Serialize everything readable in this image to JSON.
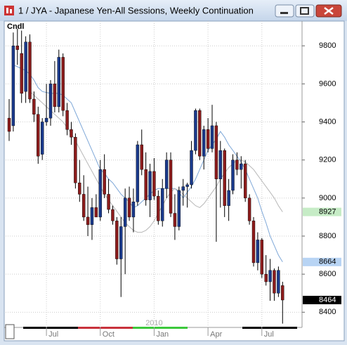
{
  "chart_data": {
    "type": "candlestick",
    "title": "1 / JYA - Japanese Yen-All Sessions, Weekly Continuation",
    "indicator_label": "Cndl",
    "year_label": "2010",
    "open": [
      9420,
      9380,
      9800,
      9760,
      9560,
      9820,
      9520,
      9440,
      9230,
      9400,
      9420,
      9600,
      9480,
      9740,
      9460,
      9360,
      9320,
      9080,
      9020,
      8900,
      8860,
      8950,
      8900,
      9150,
      9020,
      8940,
      8880,
      8680,
      8850,
      9000,
      8900,
      8980,
      9280,
      9150,
      8990,
      9140,
      9010,
      8880,
      9050,
      9200,
      8920,
      8850,
      9040,
      9060,
      9070,
      9250,
      9460,
      9220,
      9360,
      9260,
      9380,
      9100,
      9250,
      8960,
      9040,
      9200,
      9150,
      9180,
      9000,
      8880,
      8660,
      8780,
      8600,
      8560,
      8620,
      8500,
      8540
    ],
    "high": [
      9520,
      9870,
      9890,
      9880,
      9850,
      9860,
      9560,
      9480,
      9420,
      9600,
      9620,
      9720,
      9780,
      9760,
      9500,
      9400,
      9340,
      9200,
      9120,
      9060,
      9000,
      9020,
      9200,
      9230,
      9100,
      8960,
      8900,
      8900,
      9050,
      9060,
      9050,
      9300,
      9360,
      9240,
      9180,
      9210,
      9040,
      9100,
      9240,
      9240,
      9020,
      9060,
      9100,
      9080,
      9300,
      9470,
      9470,
      9380,
      9420,
      9490,
      9400,
      9300,
      9260,
      9100,
      9230,
      9240,
      9220,
      9200,
      9020,
      8900,
      8820,
      8790,
      8700,
      8680,
      8630,
      8640,
      8560
    ],
    "low": [
      9300,
      9350,
      9700,
      9500,
      9500,
      9500,
      9400,
      9180,
      9200,
      9380,
      9380,
      9450,
      9450,
      9430,
      9330,
      9280,
      9050,
      8980,
      8880,
      8800,
      8780,
      8900,
      8880,
      9000,
      8920,
      8860,
      8650,
      8480,
      8600,
      8880,
      8820,
      8960,
      9120,
      8960,
      8900,
      8990,
      8860,
      8850,
      9000,
      8900,
      8780,
      8830,
      8960,
      8950,
      9050,
      9230,
      9200,
      9150,
      9240,
      9240,
      8770,
      8950,
      8900,
      8880,
      9020,
      9120,
      9050,
      8980,
      8860,
      8640,
      8620,
      8580,
      8540,
      8460,
      8460,
      8480,
      8340
    ],
    "close": [
      9350,
      9800,
      9780,
      9550,
      9820,
      9520,
      9440,
      9220,
      9400,
      9420,
      9600,
      9480,
      9740,
      9460,
      9360,
      9320,
      9080,
      9020,
      8900,
      8860,
      8950,
      8900,
      9150,
      9020,
      8940,
      8880,
      8680,
      8850,
      9000,
      8900,
      8980,
      9280,
      9150,
      8990,
      9140,
      9010,
      8880,
      9050,
      9200,
      8920,
      8850,
      9040,
      9060,
      9070,
      9250,
      9460,
      9220,
      9360,
      9260,
      9380,
      9100,
      9250,
      8960,
      9040,
      9200,
      9150,
      9180,
      9000,
      8880,
      8660,
      8780,
      8600,
      8560,
      8620,
      8500,
      8620,
      8464
    ],
    "up_color": "#1a3a8c",
    "down_color": "#8c1c1c",
    "series": [
      {
        "color": "#7fa8d8",
        "values": [
          null,
          9700,
          9690,
          9680,
          9670,
          9650,
          9620,
          9580,
          9560,
          9555,
          9550,
          9550,
          9550,
          9540,
          9520,
          9500,
          9450,
          9400,
          9350,
          9300,
          9250,
          9200,
          9150,
          9130,
          9100,
          9080,
          9050,
          9020,
          9000,
          8980,
          8950,
          8960,
          8980,
          9000,
          9020,
          9040,
          9050,
          9050,
          9050,
          9050,
          9050,
          9030,
          9000,
          9030,
          9060,
          9100,
          9150,
          9200,
          9250,
          9280,
          9310,
          9350,
          9320,
          9280,
          9250,
          9220,
          9190,
          9150,
          9100,
          9050,
          9000,
          8930,
          8870,
          8800,
          8750,
          8700,
          8664
        ]
      },
      {
        "color": "#b8b8b8",
        "values": [
          null,
          null,
          null,
          null,
          null,
          9560,
          9540,
          9520,
          9500,
          9480,
          9460,
          9440,
          9420,
          9400,
          9370,
          9340,
          9300,
          9260,
          9220,
          9180,
          9140,
          9100,
          9060,
          9020,
          8990,
          8960,
          8930,
          8900,
          8870,
          8850,
          8830,
          8820,
          8820,
          8830,
          8850,
          8880,
          8920,
          8960,
          9000,
          9030,
          9050,
          9040,
          9020,
          9000,
          8980,
          8960,
          8950,
          8970,
          9000,
          9030,
          9060,
          9100,
          9130,
          9160,
          9180,
          9200,
          9200,
          9190,
          9170,
          9150,
          9120,
          9090,
          9060,
          9030,
          9000,
          8960,
          8927
        ]
      }
    ],
    "price_markers": [
      {
        "value": 8927,
        "bg": "#c6ecc6",
        "fg": "#000000"
      },
      {
        "value": 8664,
        "bg": "#b8d4f4",
        "fg": "#000000"
      },
      {
        "value": 8464,
        "bg": "#000000",
        "fg": "#ffffff"
      }
    ],
    "xlim": [
      -0.85,
      70.7
    ],
    "xticks": [
      {
        "value": 9,
        "label": "Jul"
      },
      {
        "value": 22,
        "label": "Oct"
      },
      {
        "value": 35,
        "label": "Jan"
      },
      {
        "value": 48,
        "label": "Apr"
      },
      {
        "value": 61,
        "label": "Jul"
      }
    ],
    "ylim": [
      8320,
      9930
    ],
    "yticks": [
      8400,
      8600,
      8800,
      9000,
      9200,
      9400,
      9600,
      9800
    ],
    "grid": true
  }
}
